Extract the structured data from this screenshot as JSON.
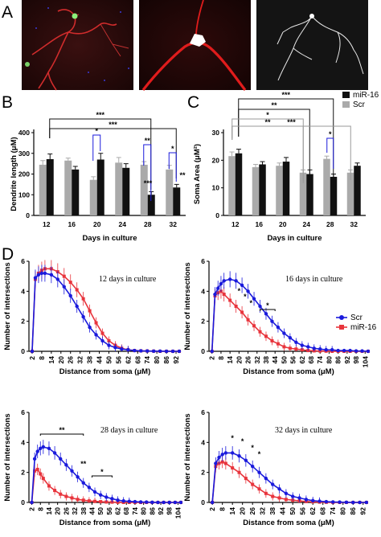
{
  "panels": {
    "A": "A",
    "B": "B",
    "C": "C",
    "D": "D"
  },
  "colors": {
    "black": "#111111",
    "gray": "#aaaaaa",
    "blue": "#1a1adc",
    "red": "#e8343c",
    "bracket_black": "#111111",
    "bracket_gray": "#9a9a9a",
    "bracket_blue": "#1a1adc"
  },
  "micro": {
    "alt": [
      "neuron-with-axon-micrograph",
      "soma-closeup-micrograph",
      "dendrite-tracing-micrograph"
    ]
  },
  "chart_data": [
    {
      "type": "bar",
      "panel": "B",
      "xlabel": "Days in culture",
      "ylabel": "Dendrite length (μM)",
      "categories": [
        "12",
        "16",
        "20",
        "24",
        "28",
        "32"
      ],
      "ylim": [
        0,
        400
      ],
      "yticks": [
        "0",
        "100",
        "200",
        "300",
        "400"
      ],
      "legend_position": "top-right",
      "series": [
        {
          "name": "Scr",
          "color": "#aaaaaa",
          "values": [
            245,
            265,
            172,
            255,
            245,
            222
          ],
          "errors": [
            20,
            12,
            15,
            25,
            15,
            20
          ]
        },
        {
          "name": "miR-16",
          "color": "#111111",
          "values": [
            272,
            222,
            270,
            230,
            100,
            135
          ],
          "errors": [
            25,
            15,
            30,
            20,
            15,
            15
          ]
        }
      ],
      "annotations": [
        {
          "text": "*",
          "bracket": "blue"
        },
        {
          "text": "**",
          "bracket": "blue"
        },
        {
          "text": "*",
          "bracket": "blue"
        },
        {
          "text": "***",
          "bracket": "black"
        },
        {
          "text": "***",
          "bracket": "black"
        },
        {
          "text": "***",
          "bracket": "none"
        },
        {
          "text": "**",
          "bracket": "none"
        }
      ]
    },
    {
      "type": "bar",
      "panel": "C",
      "xlabel": "Days in culture",
      "ylabel": "Soma Area (μM²)",
      "categories": [
        "12",
        "16",
        "20",
        "24",
        "28",
        "32"
      ],
      "ylim": [
        0,
        30
      ],
      "yticks": [
        "0",
        "10",
        "20",
        "30"
      ],
      "legend_position": "top-right",
      "series": [
        {
          "name": "Scr",
          "color": "#aaaaaa",
          "values": [
            21.5,
            17.5,
            18,
            15.5,
            20.5,
            15.5
          ],
          "errors": [
            1.5,
            1,
            1,
            1,
            1,
            1
          ]
        },
        {
          "name": "miR-16",
          "color": "#111111",
          "values": [
            22.5,
            18.5,
            19.5,
            15,
            14,
            18
          ],
          "errors": [
            1.5,
            1,
            1.5,
            1.5,
            1,
            1
          ]
        }
      ],
      "annotations": [
        {
          "text": "***",
          "bracket": "black"
        },
        {
          "text": "**",
          "bracket": "black"
        },
        {
          "text": "*",
          "bracket": "black"
        },
        {
          "text": "**",
          "bracket": "gray"
        },
        {
          "text": "***",
          "bracket": "gray"
        },
        {
          "text": "*",
          "bracket": "blue"
        }
      ]
    },
    {
      "type": "line",
      "panel": "D",
      "title": "12 days in culture",
      "xlabel": "Distance from soma (μM)",
      "ylabel": "Number of intersections",
      "ylim": [
        0,
        6
      ],
      "yticks": [
        "0",
        "2",
        "4",
        "6"
      ],
      "xticks": [
        "2",
        "8",
        "14",
        "20",
        "26",
        "32",
        "38",
        "44",
        "50",
        "56",
        "62",
        "68",
        "74",
        "80",
        "86",
        "92"
      ],
      "xmax": 95,
      "series": [
        {
          "name": "Scr",
          "color": "#1a1adc",
          "x": [
            2,
            4,
            6,
            8,
            10,
            14,
            18,
            22,
            26,
            30,
            34,
            38,
            42,
            46,
            50,
            54,
            58,
            62,
            66,
            70,
            74,
            78,
            82,
            86,
            90,
            94
          ],
          "y": [
            0,
            4.9,
            5.1,
            5.2,
            5.2,
            5.1,
            4.8,
            4.3,
            3.7,
            3.0,
            2.3,
            1.6,
            1.1,
            0.7,
            0.4,
            0.25,
            0.15,
            0.1,
            0.05,
            0.03,
            0.02,
            0.01,
            0.01,
            0,
            0,
            0
          ]
        },
        {
          "name": "miR-16",
          "color": "#e8343c",
          "x": [
            2,
            4,
            6,
            8,
            10,
            14,
            18,
            22,
            26,
            30,
            34,
            38,
            42,
            46,
            50,
            54,
            58,
            62,
            66,
            70,
            74,
            78,
            82,
            86,
            90,
            94
          ],
          "y": [
            0,
            4.8,
            5.2,
            5.4,
            5.5,
            5.5,
            5.3,
            5.0,
            4.6,
            4.1,
            3.5,
            2.7,
            1.9,
            1.2,
            0.7,
            0.4,
            0.2,
            0.1,
            0.05,
            0.03,
            0.02,
            0.01,
            0,
            0,
            0,
            0
          ]
        }
      ],
      "annotations": []
    },
    {
      "type": "line",
      "panel": "D",
      "title": "16 days in culture",
      "xlabel": "Distance from soma (μM)",
      "ylabel": "Number of intersections",
      "ylim": [
        0,
        6
      ],
      "yticks": [
        "0",
        "2",
        "4",
        "6"
      ],
      "xticks": [
        "2",
        "8",
        "14",
        "20",
        "26",
        "32",
        "38",
        "44",
        "50",
        "56",
        "62",
        "68",
        "74",
        "80",
        "86",
        "92",
        "98",
        "104"
      ],
      "xmax": 106,
      "legend_position": "right",
      "legend": [
        "Scr",
        "miR-16"
      ],
      "series": [
        {
          "name": "Scr",
          "color": "#1a1adc",
          "x": [
            2,
            4,
            6,
            8,
            10,
            14,
            18,
            22,
            26,
            30,
            34,
            38,
            42,
            46,
            50,
            54,
            58,
            62,
            66,
            70,
            74,
            78,
            82,
            86,
            90,
            94,
            98,
            102,
            106
          ],
          "y": [
            0,
            3.8,
            4.2,
            4.5,
            4.7,
            4.8,
            4.7,
            4.4,
            4.0,
            3.5,
            3.0,
            2.5,
            2.0,
            1.6,
            1.2,
            0.9,
            0.6,
            0.4,
            0.3,
            0.2,
            0.15,
            0.1,
            0.1,
            0.05,
            0.05,
            0.05,
            0.02,
            0.02,
            0
          ]
        },
        {
          "name": "miR-16",
          "color": "#e8343c",
          "x": [
            2,
            4,
            6,
            8,
            10,
            14,
            18,
            22,
            26,
            30,
            34,
            38,
            42,
            46,
            50,
            54,
            58,
            62,
            66,
            70,
            74,
            78,
            82,
            86,
            90,
            94,
            98,
            102,
            106
          ],
          "y": [
            0,
            3.7,
            3.9,
            4.0,
            3.8,
            3.4,
            3.0,
            2.6,
            2.1,
            1.7,
            1.3,
            1.0,
            0.7,
            0.5,
            0.3,
            0.2,
            0.15,
            0.1,
            0.05,
            0.03,
            0.02,
            0.01,
            0,
            0,
            0,
            0,
            0,
            0,
            0
          ]
        }
      ],
      "annotations": [
        {
          "text": "*"
        },
        {
          "text": "*"
        },
        {
          "text": "*"
        },
        {
          "text": "*"
        }
      ]
    },
    {
      "type": "line",
      "panel": "D",
      "title": "28 days in culture",
      "xlabel": "Distance from soma (μM)",
      "ylabel": "Number of intersections",
      "ylim": [
        0,
        6
      ],
      "yticks": [
        "0",
        "2",
        "4",
        "6"
      ],
      "xticks": [
        "2",
        "8",
        "14",
        "20",
        "26",
        "32",
        "38",
        "44",
        "50",
        "56",
        "62",
        "68",
        "74",
        "80",
        "86",
        "92",
        "98",
        "104"
      ],
      "xmax": 106,
      "series": [
        {
          "name": "Scr",
          "color": "#1a1adc",
          "x": [
            2,
            4,
            6,
            8,
            10,
            14,
            18,
            22,
            26,
            30,
            34,
            38,
            42,
            46,
            50,
            54,
            58,
            62,
            66,
            70,
            74,
            78,
            82,
            86,
            90,
            94,
            98,
            102,
            106
          ],
          "y": [
            0,
            2.9,
            3.4,
            3.6,
            3.7,
            3.6,
            3.3,
            2.9,
            2.5,
            2.1,
            1.7,
            1.3,
            1.0,
            0.7,
            0.5,
            0.35,
            0.25,
            0.15,
            0.1,
            0.07,
            0.05,
            0.03,
            0.02,
            0.01,
            0,
            0,
            0,
            0,
            0
          ]
        },
        {
          "name": "miR-16",
          "color": "#e8343c",
          "x": [
            2,
            4,
            6,
            8,
            10,
            14,
            18,
            22,
            26,
            30,
            34,
            38,
            42,
            46,
            50,
            54,
            58,
            62,
            66,
            70,
            74,
            78,
            82,
            86,
            90,
            94,
            98,
            102,
            106
          ],
          "y": [
            0,
            2.1,
            2.2,
            1.9,
            1.6,
            1.1,
            0.8,
            0.55,
            0.4,
            0.3,
            0.2,
            0.15,
            0.1,
            0.07,
            0.05,
            0.03,
            0.02,
            0.01,
            0,
            0,
            0,
            0,
            0,
            0,
            0,
            0,
            0,
            0,
            0
          ]
        }
      ],
      "annotations": [
        {
          "text": "**"
        },
        {
          "text": "**"
        },
        {
          "text": "*"
        }
      ]
    },
    {
      "type": "line",
      "panel": "D",
      "title": "32 days in culture",
      "xlabel": "Distance from soma (μM)",
      "ylabel": "Number of intersections",
      "ylim": [
        0,
        6
      ],
      "yticks": [
        "0",
        "2",
        "4",
        "6"
      ],
      "xticks": [
        "2",
        "8",
        "14",
        "20",
        "26",
        "32",
        "38",
        "44",
        "50",
        "56",
        "62",
        "68",
        "74",
        "80",
        "86",
        "92"
      ],
      "xmax": 95,
      "series": [
        {
          "name": "Scr",
          "color": "#1a1adc",
          "x": [
            2,
            4,
            6,
            8,
            10,
            14,
            18,
            22,
            26,
            30,
            34,
            38,
            42,
            46,
            50,
            54,
            58,
            62,
            66,
            70,
            74,
            78,
            82,
            86,
            90,
            94
          ],
          "y": [
            0,
            2.6,
            3.0,
            3.2,
            3.3,
            3.3,
            3.1,
            2.8,
            2.4,
            2.0,
            1.6,
            1.2,
            0.9,
            0.6,
            0.4,
            0.3,
            0.2,
            0.12,
            0.08,
            0.05,
            0.03,
            0.02,
            0.01,
            0,
            0,
            0
          ]
        },
        {
          "name": "miR-16",
          "color": "#e8343c",
          "x": [
            2,
            4,
            6,
            8,
            10,
            14,
            18,
            22,
            26,
            30,
            34,
            38,
            42,
            46,
            50,
            54,
            58,
            62,
            66,
            70,
            74,
            78,
            82,
            86,
            90,
            94
          ],
          "y": [
            0,
            2.4,
            2.6,
            2.7,
            2.6,
            2.3,
            2.0,
            1.6,
            1.2,
            0.9,
            0.6,
            0.4,
            0.3,
            0.2,
            0.15,
            0.1,
            0.06,
            0.04,
            0.02,
            0.01,
            0,
            0,
            0,
            0,
            0,
            0
          ]
        }
      ],
      "annotations": [
        {
          "text": "*"
        },
        {
          "text": "*"
        },
        {
          "text": "*"
        },
        {
          "text": "*"
        }
      ]
    }
  ]
}
